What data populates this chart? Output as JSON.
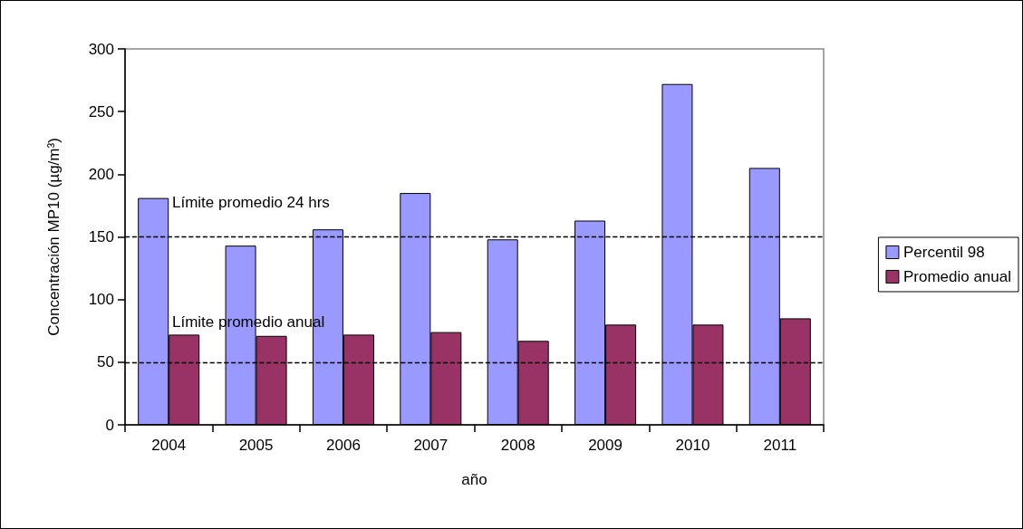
{
  "chart_data": {
    "type": "bar",
    "xlabel": "año",
    "ylabel": "Concentración MP10 (µg/m³)",
    "categories": [
      "2004",
      "2005",
      "2006",
      "2007",
      "2008",
      "2009",
      "2010",
      "2011"
    ],
    "series": [
      {
        "name": "Percentil 98",
        "color": "#9999ff",
        "values": [
          181,
          143,
          156,
          185,
          148,
          163,
          272,
          205
        ]
      },
      {
        "name": "Promedio anual",
        "color": "#993366",
        "values": [
          72,
          71,
          72,
          74,
          67,
          80,
          80,
          85
        ]
      }
    ],
    "ylim": [
      0,
      300
    ],
    "yticks": [
      0,
      50,
      100,
      150,
      200,
      250,
      300
    ],
    "grid": false,
    "legend": "right",
    "ref_lines": [
      {
        "axis": "y",
        "value": 150,
        "label": "Límite promedio 24 hrs",
        "color": "#000000",
        "line_style": "dashed"
      },
      {
        "axis": "y",
        "value": 50,
        "label": "Límite promedio anual",
        "color": "#000000",
        "line_style": "dashed"
      }
    ]
  }
}
